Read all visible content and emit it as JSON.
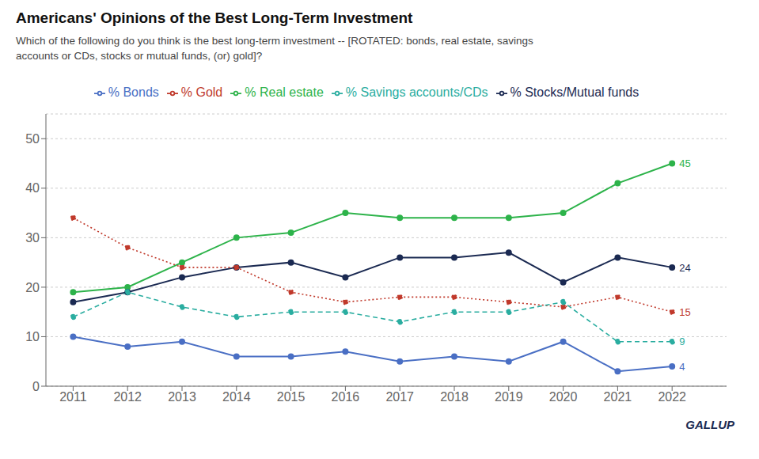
{
  "chart_data": {
    "type": "line",
    "title": "Americans' Opinions of the Best Long-Term Investment",
    "subtitle": [
      "Which of the following do you think is the best long-term investment -- [ROTATED: bonds, real estate, savings",
      "accounts or CDs, stocks or mutual funds, (or) gold]?"
    ],
    "x": [
      2011,
      2012,
      2013,
      2014,
      2015,
      2016,
      2017,
      2018,
      2019,
      2020,
      2021,
      2022
    ],
    "xlim": [
      2010.5,
      2023
    ],
    "xticks": [
      2011,
      2012,
      2013,
      2014,
      2015,
      2016,
      2017,
      2018,
      2019,
      2020,
      2021,
      2022
    ],
    "ylim": [
      0,
      55
    ],
    "yticks": [
      0,
      10,
      20,
      30,
      40,
      50
    ],
    "grid": true,
    "legend": "top",
    "series": [
      {
        "name": "% Real estate",
        "color": "#2db34a",
        "line_style": "solid",
        "marker": "circle",
        "values": [
          19,
          20,
          25,
          30,
          31,
          35,
          34,
          34,
          34,
          35,
          41,
          45
        ]
      },
      {
        "name": "% Stocks/Mutual funds",
        "color": "#1b2a52",
        "line_style": "solid",
        "marker": "circle",
        "values": [
          17,
          19,
          22,
          24,
          25,
          22,
          26,
          26,
          27,
          21,
          26,
          24
        ]
      },
      {
        "name": "% Gold",
        "color": "#c0392b",
        "line_style": "dotted",
        "marker": "circle",
        "values": [
          34,
          28,
          24,
          24,
          19,
          17,
          18,
          18,
          17,
          16,
          18,
          15
        ]
      },
      {
        "name": "% Savings accounts/CDs",
        "color": "#2aada0",
        "line_style": "dashed",
        "marker": "circle",
        "values": [
          14,
          19,
          16,
          14,
          15,
          15,
          13,
          15,
          15,
          17,
          9,
          9
        ]
      },
      {
        "name": "% Bonds",
        "color": "#4a6fc4",
        "line_style": "solid",
        "marker": "circle",
        "values": [
          10,
          8,
          9,
          6,
          6,
          7,
          5,
          6,
          5,
          9,
          3,
          4
        ]
      }
    ],
    "annotations": [
      {
        "text": "45",
        "series": "% Real estate",
        "x": 2022,
        "y": 45
      },
      {
        "text": "24",
        "series": "% Stocks/Mutual funds",
        "x": 2022,
        "y": 24
      },
      {
        "text": "15",
        "series": "% Gold",
        "x": 2022,
        "y": 15
      },
      {
        "text": "9",
        "series": "% Savings accounts/CDs",
        "x": 2022,
        "y": 9
      },
      {
        "text": "4",
        "series": "% Bonds",
        "x": 2022,
        "y": 4
      },
      {
        "text": "GALLUP"
      }
    ]
  }
}
